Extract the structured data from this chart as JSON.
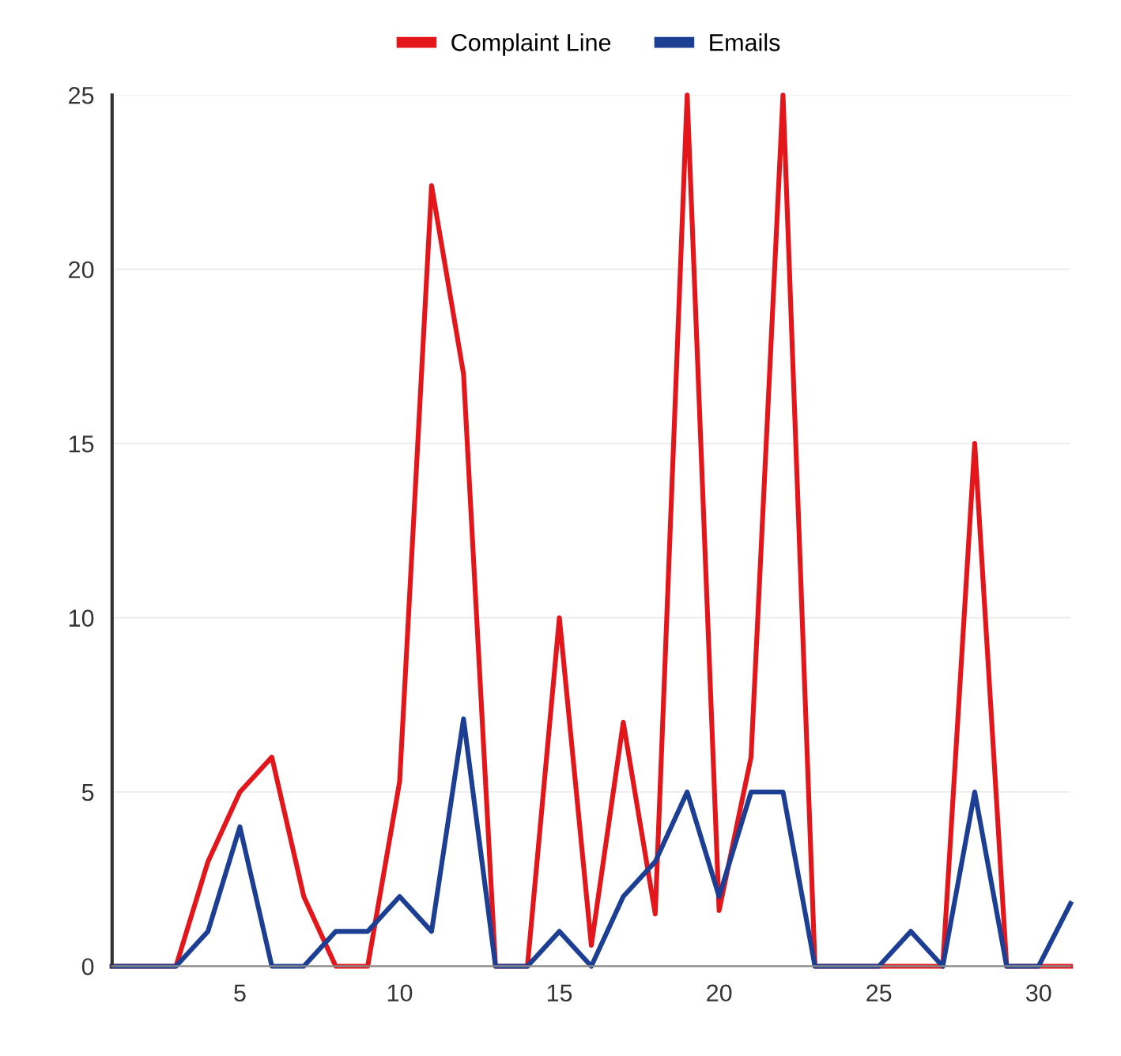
{
  "chart_data": {
    "type": "line",
    "x": [
      1,
      2,
      3,
      4,
      5,
      6,
      7,
      8,
      9,
      10,
      11,
      12,
      13,
      14,
      15,
      16,
      17,
      18,
      19,
      20,
      21,
      22,
      23,
      24,
      25,
      26,
      27,
      28,
      29,
      30,
      31
    ],
    "series": [
      {
        "name": "Complaint Line",
        "color": "#e3161b",
        "values": [
          0,
          0,
          0,
          3,
          5,
          6,
          2,
          0,
          0,
          5.3,
          22.4,
          17,
          0,
          0,
          10,
          0.6,
          7,
          1.5,
          25,
          1.6,
          6,
          25,
          0,
          0,
          0,
          0,
          0,
          15,
          0,
          0,
          0
        ]
      },
      {
        "name": "Emails",
        "color": "#1c3f94",
        "values": [
          0,
          0,
          0,
          1,
          4,
          0,
          0,
          1,
          1,
          2,
          1,
          7.1,
          0,
          0,
          1,
          0,
          2,
          3,
          5,
          2,
          5,
          5,
          0,
          0,
          0,
          1,
          0,
          5,
          0,
          0,
          1.8
        ]
      }
    ],
    "xlim": [
      1,
      31
    ],
    "xticks": [
      5,
      10,
      15,
      20,
      25,
      30
    ],
    "ylim": [
      0,
      25
    ],
    "yticks": [
      0,
      5,
      10,
      15,
      20,
      25
    ],
    "grid": "y",
    "legend": "top",
    "marker": "none",
    "line_style": "solid"
  }
}
